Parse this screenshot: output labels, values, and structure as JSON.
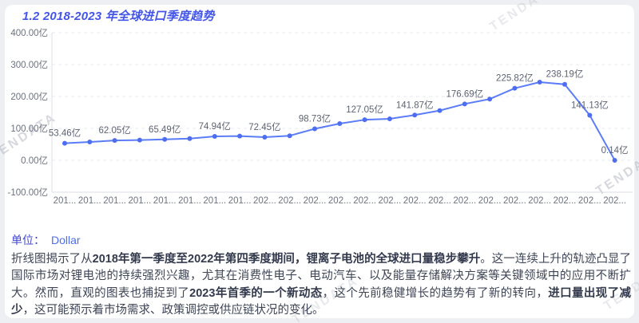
{
  "header": {
    "title": "1.2 2018-2023 年全球进口季度趋势"
  },
  "watermark": {
    "text": "TENDATA"
  },
  "unit": {
    "label": "单位：",
    "value": "Dollar"
  },
  "chart_data": {
    "type": "line",
    "title": "1.2 2018-2023 年全球进口季度趋势",
    "xlabel": "",
    "ylabel": "",
    "value_unit": "亿",
    "ylim": [
      -100,
      400
    ],
    "grid": "horizontal-dashed",
    "legend": "none",
    "line_color": "#5b7cf7",
    "point_color": "#4e6ef2",
    "y_ticks": [
      {
        "label": "400.00亿",
        "value": 400
      },
      {
        "label": "300.00亿",
        "value": 300
      },
      {
        "label": "200.00亿",
        "value": 200
      },
      {
        "label": "100.00亿",
        "value": 100
      },
      {
        "label": "0.00亿",
        "value": 0
      },
      {
        "label": "-100.00亿",
        "value": -100
      }
    ],
    "points": [
      {
        "category": "2018Q1",
        "tick": "201...",
        "value": 53.46,
        "label": "53.46亿"
      },
      {
        "category": "2018Q2",
        "tick": "201...",
        "value": 57.5
      },
      {
        "category": "2018Q3",
        "tick": "201...",
        "value": 62.05,
        "label": "62.05亿"
      },
      {
        "category": "2018Q4",
        "tick": "201...",
        "value": 63.5
      },
      {
        "category": "2019Q1",
        "tick": "201...",
        "value": 65.49,
        "label": "65.49亿"
      },
      {
        "category": "2019Q2",
        "tick": "201...",
        "value": 68
      },
      {
        "category": "2019Q3",
        "tick": "201...",
        "value": 74.94,
        "label": "74.94亿"
      },
      {
        "category": "2019Q4",
        "tick": "201...",
        "value": 76
      },
      {
        "category": "2020Q1",
        "tick": "202...",
        "value": 72.45,
        "label": "72.45亿"
      },
      {
        "category": "2020Q2",
        "tick": "202...",
        "value": 77
      },
      {
        "category": "2020Q3",
        "tick": "202...",
        "value": 98.73,
        "label": "98.73亿"
      },
      {
        "category": "2020Q4",
        "tick": "202...",
        "value": 115
      },
      {
        "category": "2021Q1",
        "tick": "202...",
        "value": 127.05,
        "label": "127.05亿"
      },
      {
        "category": "2021Q2",
        "tick": "202...",
        "value": 130
      },
      {
        "category": "2021Q3",
        "tick": "202...",
        "value": 141.87,
        "label": "141.87亿"
      },
      {
        "category": "2021Q4",
        "tick": "202...",
        "value": 156
      },
      {
        "category": "2022Q1",
        "tick": "202...",
        "value": 176.69,
        "label": "176.69亿"
      },
      {
        "category": "2022Q2",
        "tick": "202...",
        "value": 192
      },
      {
        "category": "2022Q3",
        "tick": "202...",
        "value": 225.82,
        "label": "225.82亿"
      },
      {
        "category": "2022Q4",
        "tick": "202...",
        "value": 245
      },
      {
        "category": "2023Q1",
        "tick": "202...",
        "value": 238.19,
        "label": "238.19亿"
      },
      {
        "category": "2023Q2",
        "tick": "202...",
        "value": 141.13,
        "label": "141.13亿"
      },
      {
        "category": "2023Q3",
        "tick": "202...",
        "value": 0.14,
        "label": "0.14亿"
      }
    ]
  },
  "description": {
    "segments": [
      {
        "text": "折线图揭示了从",
        "bold": false
      },
      {
        "text": "2018年第一季度至2022年第四季度期间，锂离子电池的全球进口量稳步攀升",
        "bold": true
      },
      {
        "text": "。这一连续上升的轨迹凸显了国际市场对锂电池的持续强烈兴趣，尤其在消费性电子、电动汽车、以及能量存储解决方案等关键领域中的应用不断扩大。然而，直观的图表也捕捉到了",
        "bold": false
      },
      {
        "text": "2023年首季的一个新动态",
        "bold": true
      },
      {
        "text": "，这个先前稳健增长的趋势有了新的转向，",
        "bold": false
      },
      {
        "text": "进口量出现了减少",
        "bold": true
      },
      {
        "text": "，这可能预示着市场需求、政策调控或供应链状况的变化。",
        "bold": false
      }
    ]
  },
  "colors": {
    "accent_title": "#4355e9",
    "line": "#5b7cf7",
    "axis_text": "#6b7280",
    "data_label": "#5d6373",
    "grid": "#e5e7ee",
    "body_text": "#3e4556"
  }
}
